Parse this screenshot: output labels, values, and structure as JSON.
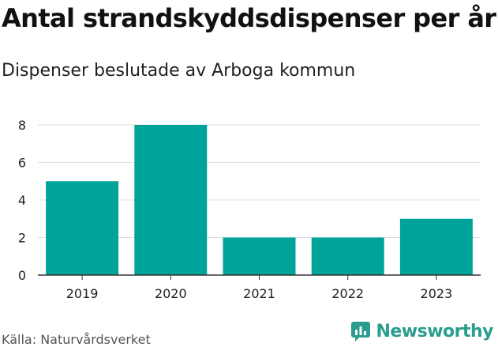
{
  "header": {
    "title": "Antal strandskyddsdispenser per år",
    "subtitle": "Dispenser beslutade av Arboga kommun"
  },
  "footer": {
    "source": "Källa: Naturvårdsverket",
    "brand": "Newsworthy"
  },
  "colors": {
    "bar": "#00a39a",
    "grid": "#dddddd",
    "axis": "#333333",
    "brand": "#2a9d8f"
  },
  "chart_data": {
    "type": "bar",
    "title": "Antal strandskyddsdispenser per år",
    "subtitle": "Dispenser beslutade av Arboga kommun",
    "categories": [
      "2019",
      "2020",
      "2021",
      "2022",
      "2023"
    ],
    "values": [
      5,
      8,
      2,
      2,
      3
    ],
    "xlabel": "",
    "ylabel": "",
    "ylim": [
      0,
      8
    ],
    "yticks": [
      0,
      2,
      4,
      6,
      8
    ],
    "grid": true
  }
}
